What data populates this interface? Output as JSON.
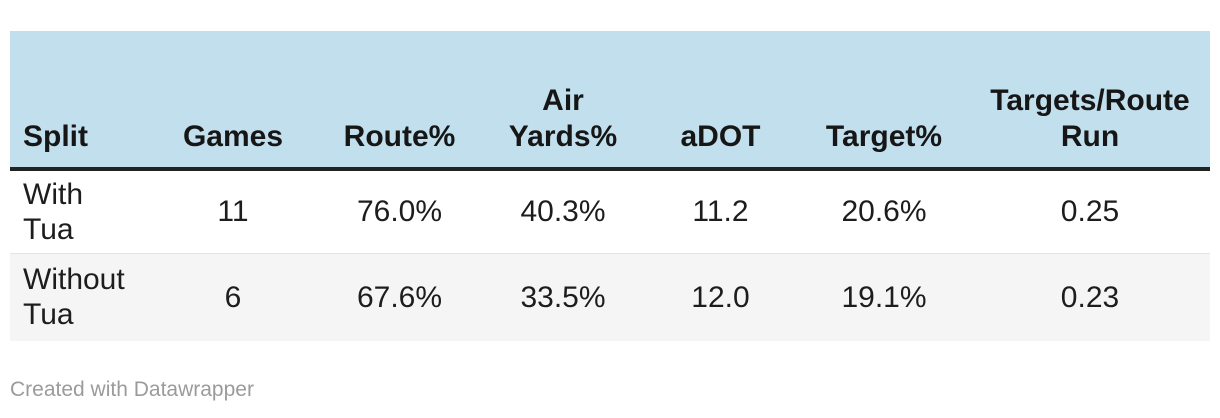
{
  "table": {
    "columns": {
      "split": {
        "label": "Split"
      },
      "games": {
        "label": "Games"
      },
      "route": {
        "label": "Route%"
      },
      "airy": {
        "label": "Air\nYards%"
      },
      "adot": {
        "label": "aDOT"
      },
      "target": {
        "label": "Target%"
      },
      "trr": {
        "label": "Targets/Route\nRun"
      }
    },
    "rows": [
      {
        "split": "With\nTua",
        "games": "11",
        "route": "76.0%",
        "airy": "40.3%",
        "adot": "11.2",
        "target": "20.6%",
        "trr": "0.25"
      },
      {
        "split": "Without\nTua",
        "games": "6",
        "route": "67.6%",
        "airy": "33.5%",
        "adot": "12.0",
        "target": "19.1%",
        "trr": "0.23"
      }
    ]
  },
  "footer": {
    "credit": "Created with Datawrapper"
  },
  "colors": {
    "header_bg": "#c1dfed",
    "header_rule": "#222222",
    "alt_row_bg": "#f5f5f5",
    "row_divider": "#e4e4e4",
    "body_text": "#1d1d1d",
    "footer_text": "#9b9b9b",
    "page_bg": "#ffffff"
  }
}
